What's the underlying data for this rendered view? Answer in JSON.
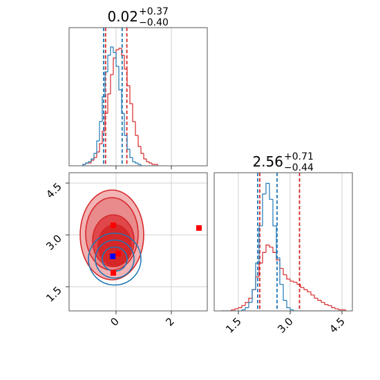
{
  "chart_data": {
    "type": "corner",
    "grid": true,
    "titles": [
      {
        "main": "0.02",
        "upper": "+0.37",
        "lower": "−0.40"
      },
      {
        "main": "2.56",
        "upper": "+0.71",
        "lower": "−0.44"
      }
    ],
    "x1lim": [
      -1.7,
      3.3
    ],
    "x1ticks": [
      0,
      2
    ],
    "x2lim": [
      0.8,
      4.8
    ],
    "x2ticks": [
      1.5,
      {
        "value": 3,
        "label": "3.0"
      },
      4.5
    ],
    "hist1": {
      "ylim": [
        0,
        100
      ],
      "bins": [
        -1.2,
        -1.1,
        -1.0,
        -0.9,
        -0.8,
        -0.7,
        -0.6,
        -0.5,
        -0.4,
        -0.3,
        -0.2,
        -0.1,
        0.0,
        0.1,
        0.2,
        0.3,
        0.4,
        0.5,
        0.6,
        0.7,
        0.8,
        0.9,
        1.0,
        1.1,
        1.2,
        1.3,
        1.4,
        1.5
      ],
      "series": [
        {
          "color": "#d62728",
          "values": [
            1,
            2,
            2,
            4,
            6,
            10,
            16,
            25,
            38,
            52,
            66,
            78,
            84,
            85,
            80,
            70,
            58,
            45,
            32,
            22,
            14,
            9,
            5,
            3,
            2,
            1,
            1
          ],
          "quantiles": [
            -0.38,
            0.39
          ]
        },
        {
          "color": "#1f77b4",
          "values": [
            1,
            2,
            3,
            5,
            9,
            18,
            32,
            50,
            68,
            80,
            86,
            82,
            72,
            55,
            38,
            22,
            12,
            6,
            3,
            2,
            1,
            0,
            0,
            0,
            0,
            0,
            0
          ],
          "quantiles": [
            -0.45,
            0.22
          ]
        }
      ]
    },
    "hist2": {
      "ylim": [
        0,
        130
      ],
      "bins": [
        1.0,
        1.1,
        1.2,
        1.3,
        1.4,
        1.5,
        1.6,
        1.7,
        1.8,
        1.9,
        2.0,
        2.1,
        2.2,
        2.3,
        2.4,
        2.5,
        2.6,
        2.7,
        2.8,
        2.9,
        3.0,
        3.1,
        3.2,
        3.3,
        3.4,
        3.5,
        3.6,
        3.7,
        3.8,
        3.9,
        4.0,
        4.1,
        4.2,
        4.3,
        4.4,
        4.5,
        4.6
      ],
      "series": [
        {
          "color": "#d62728",
          "values": [
            0,
            0,
            0,
            1,
            2,
            3,
            5,
            8,
            12,
            20,
            32,
            45,
            55,
            62,
            60,
            55,
            48,
            40,
            34,
            30,
            28,
            27,
            25,
            22,
            20,
            18,
            15,
            12,
            10,
            8,
            6,
            5,
            3,
            2,
            1,
            1
          ],
          "quantiles": [
            2.12,
            3.27
          ]
        },
        {
          "color": "#1f77b4",
          "values": [
            0,
            0,
            0,
            0,
            0,
            0,
            1,
            3,
            8,
            20,
            45,
            80,
            110,
            120,
            105,
            80,
            50,
            25,
            10,
            3,
            1,
            0,
            0,
            0,
            0,
            0,
            0,
            0,
            0,
            0,
            0,
            0,
            0,
            0,
            0,
            0
          ],
          "quantiles": [
            2.06,
            2.62
          ]
        }
      ]
    },
    "contours": [
      {
        "color": "#d62728",
        "fill_colors": [
          "#f2b3b4",
          "#e98a8c",
          "#e0474b",
          "#d62728"
        ],
        "cx": [
          -0.15,
          -0.15,
          -0.1,
          -0.05
        ],
        "cy": [
          3.0,
          3.03,
          2.83,
          2.7
        ],
        "rx": [
          1.15,
          0.95,
          0.75,
          0.6
        ],
        "ry": [
          1.3,
          1.05,
          0.75,
          0.6
        ]
      },
      {
        "color": "#1f77b4",
        "cx": [
          -0.05,
          -0.05,
          -0.05
        ],
        "cy": [
          2.3,
          2.3,
          2.3
        ],
        "rx": [
          0.95,
          0.7,
          0.45
        ],
        "ry": [
          0.75,
          0.55,
          0.35
        ]
      }
    ],
    "points": [
      {
        "color": "#ff0000",
        "x": [
          -0.1,
          0.08,
          -0.1,
          3.0
        ],
        "y": [
          3.28,
          2.46,
          1.9,
          3.2
        ]
      },
      {
        "color": "#0000ff",
        "x": [
          -0.12
        ],
        "y": [
          2.38
        ]
      }
    ]
  }
}
